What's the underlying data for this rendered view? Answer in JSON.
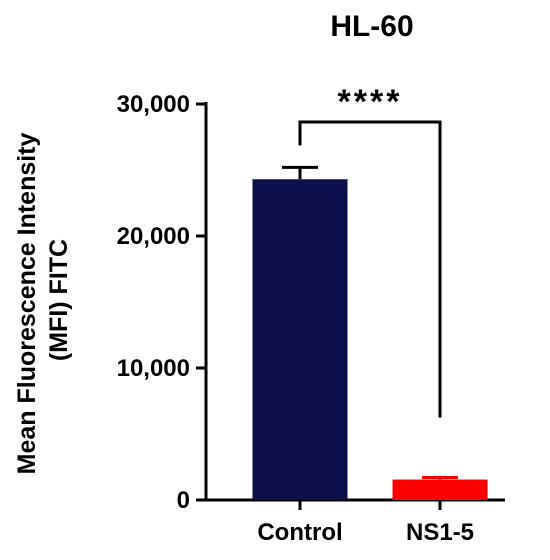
{
  "chart_data": {
    "type": "bar",
    "title": "HL-60",
    "xlabel": "",
    "ylabel_lines": [
      "Mean Fluorescence Intensity",
      "(MFI) FITC"
    ],
    "categories": [
      "Control",
      "NS1-5"
    ],
    "values": [
      24300,
      1550
    ],
    "errors": [
      900,
      150
    ],
    "colors": [
      "#0c0f4a",
      "#ff0000"
    ],
    "ylim": [
      0,
      30000
    ],
    "yticks": [
      0,
      10000,
      20000,
      30000
    ],
    "ytick_labels": [
      "0",
      "10,000",
      "20,000",
      "30,000"
    ],
    "grid": false,
    "legend": "none",
    "significance": {
      "label": "****",
      "between": [
        "Control",
        "NS1-5"
      ]
    }
  }
}
